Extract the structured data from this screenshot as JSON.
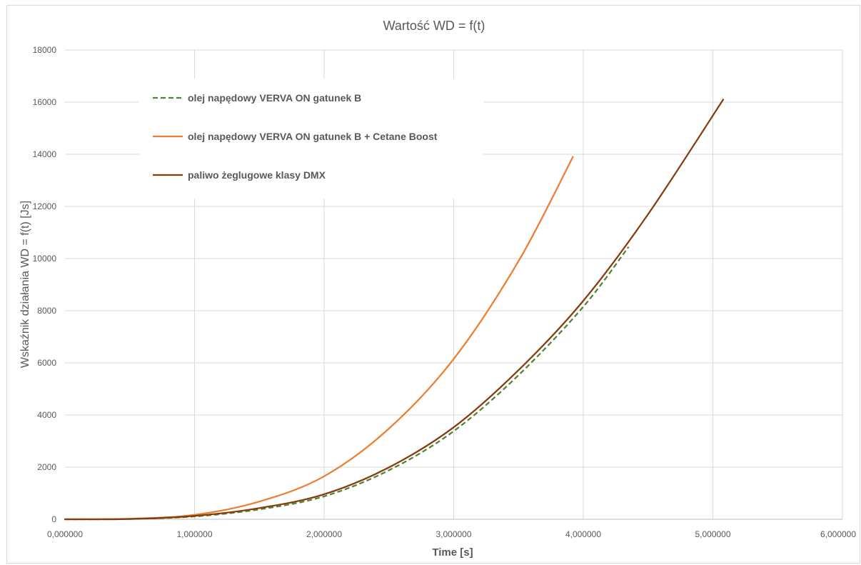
{
  "chart_data": {
    "type": "line",
    "title": "Wartość WD = f(t)",
    "xlabel": "Time [s]",
    "ylabel": "Wskaźnik działania WD = f(t) [Js]",
    "xlim": [
      0,
      6
    ],
    "ylim": [
      0,
      18000
    ],
    "x_ticks": [
      0,
      1,
      2,
      3,
      4,
      5,
      6
    ],
    "x_tick_labels": [
      "0,000000",
      "1,000000",
      "2,000000",
      "3,000000",
      "4,000000",
      "5,000000",
      "6,000000"
    ],
    "y_ticks": [
      0,
      2000,
      4000,
      6000,
      8000,
      10000,
      12000,
      14000,
      16000,
      18000
    ],
    "y_tick_labels": [
      "0",
      "2000",
      "4000",
      "6000",
      "8000",
      "10000",
      "12000",
      "14000",
      "16000",
      "18000"
    ],
    "grid": true,
    "legend_position": "top-left",
    "series": [
      {
        "name": "olej napędowy VERVA ON gatunek B",
        "color": "#548235",
        "style": "dashed",
        "x": [
          0,
          0.5,
          1.0,
          1.5,
          2.0,
          2.5,
          3.0,
          3.5,
          4.0,
          4.35
        ],
        "y": [
          0,
          10,
          110,
          380,
          880,
          1880,
          3380,
          5530,
          8150,
          10450
        ]
      },
      {
        "name": "olej napędowy VERVA ON gatunek B + Cetane Boost",
        "color": "#ed7d31",
        "style": "solid",
        "x": [
          0,
          0.5,
          1.0,
          1.5,
          2.0,
          2.5,
          3.0,
          3.5,
          3.92
        ],
        "y": [
          0,
          20,
          170,
          680,
          1650,
          3480,
          6150,
          9900,
          13900
        ]
      },
      {
        "name": "paliwo żeglugowe klasy DMX",
        "color": "#843c0c",
        "style": "solid",
        "x": [
          0,
          0.5,
          1.0,
          1.5,
          2.0,
          2.5,
          3.0,
          3.5,
          4.0,
          4.5,
          5.08
        ],
        "y": [
          0,
          12,
          130,
          430,
          960,
          1990,
          3530,
          5720,
          8380,
          11700,
          16100
        ]
      }
    ]
  }
}
